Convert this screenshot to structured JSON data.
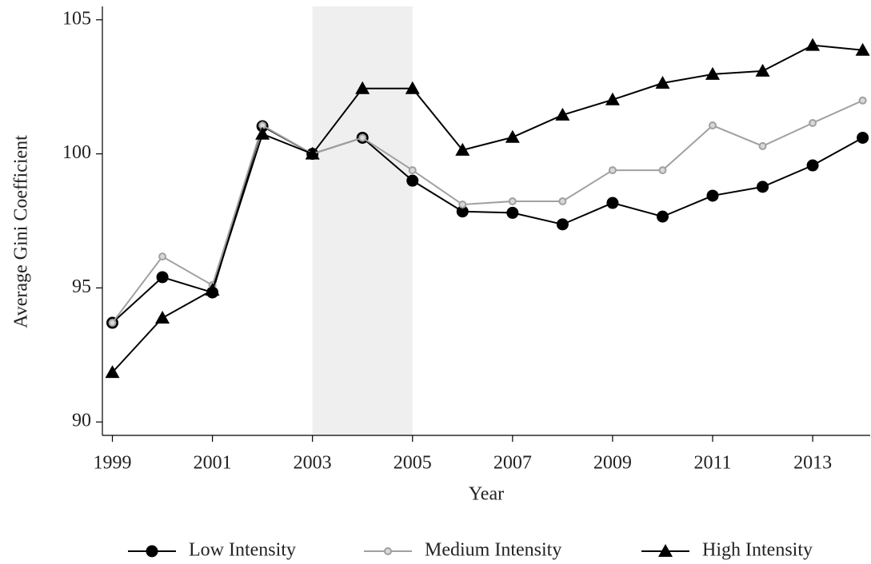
{
  "chart_data": {
    "type": "line",
    "x_label": "Year",
    "y_label": "Average Gini Coefficient",
    "x": [
      1999,
      2000,
      2001,
      2002,
      2003,
      2004,
      2005,
      2006,
      2007,
      2008,
      2009,
      2010,
      2011,
      2012,
      2013,
      2014
    ],
    "series": [
      {
        "name": "Low Intensity",
        "color": "#000000",
        "marker": "circle",
        "values": [
          93.7,
          95.4,
          94.83,
          101.03,
          100.0,
          100.6,
          99.0,
          97.85,
          97.8,
          97.37,
          98.17,
          97.66,
          98.44,
          98.77,
          99.57,
          100.6
        ]
      },
      {
        "name": "Medium Intensity",
        "color": "#a0a0a0",
        "marker": "circle-open",
        "values": [
          93.7,
          96.17,
          95.1,
          101.06,
          100.0,
          100.6,
          99.39,
          98.11,
          98.23,
          98.23,
          99.39,
          99.39,
          101.06,
          100.29,
          101.15,
          101.99
        ]
      },
      {
        "name": "High Intensity",
        "color": "#000000",
        "marker": "triangle",
        "values": [
          91.85,
          93.88,
          94.92,
          100.74,
          100.0,
          102.44,
          102.44,
          100.14,
          100.62,
          101.45,
          102.02,
          102.64,
          102.97,
          103.09,
          104.05,
          103.87
        ]
      }
    ],
    "shaded_x": [
      2003,
      2005
    ],
    "shade_color": "#efefef",
    "xlim": [
      1998.8,
      2014.15
    ],
    "xticks": [
      1999,
      2001,
      2003,
      2005,
      2007,
      2009,
      2011,
      2013
    ],
    "ylim": [
      89.5,
      105.5
    ],
    "yticks": [
      90,
      95,
      100,
      105
    ],
    "grid": false,
    "legend_position": "bottom"
  }
}
